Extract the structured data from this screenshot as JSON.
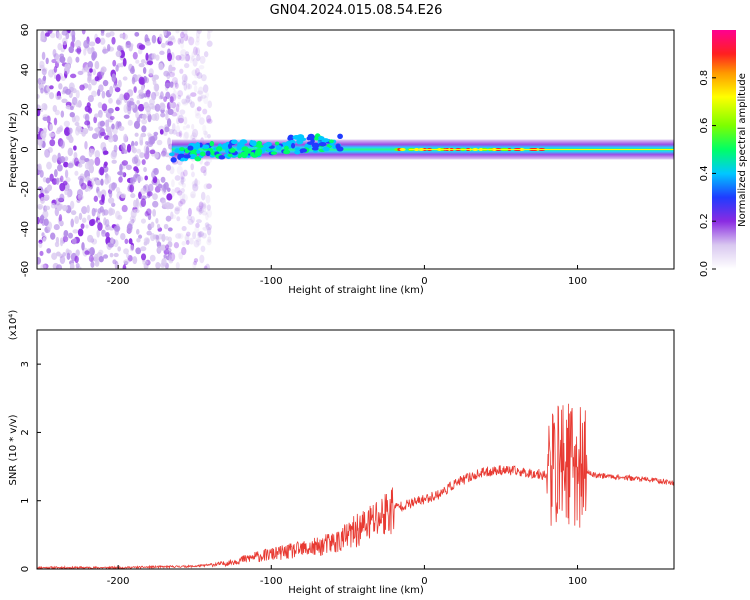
{
  "title": "GN04.2024.015.08.54.E26",
  "chart_data": [
    {
      "type": "heatmap",
      "xlabel": "Height of straight line (km)",
      "ylabel": "Frequency (Hz)",
      "xlim": [
        -253,
        163
      ],
      "ylim": [
        -60,
        60
      ],
      "xticks": [
        -200,
        -100,
        0,
        100
      ],
      "yticks": [
        -60,
        -40,
        -20,
        0,
        20,
        40,
        60
      ],
      "colorbar": {
        "label": "Normalized spectral amplitude",
        "range": [
          0,
          1
        ],
        "ticks": [
          "0.0",
          "0.2",
          "0.4",
          "0.6",
          "0.8"
        ],
        "colors": [
          "#ffffff",
          "#d9c8f0",
          "#8a2be2",
          "#1f3cff",
          "#00c8ff",
          "#00ff66",
          "#7dff00",
          "#ffff00",
          "#ff9900",
          "#ff2020",
          "#ff0090"
        ]
      },
      "features": {
        "noise_region_x": [
          -253,
          -140
        ],
        "main_line_x": [
          -165,
          163
        ],
        "main_line_freq": 0,
        "peak_x": [
          -20,
          80
        ]
      }
    },
    {
      "type": "line",
      "xlabel": "Height of straight line (km)",
      "ylabel": "SNR (10 * v/v)",
      "y_multiplier": "(x10⁴)",
      "xlim": [
        -253,
        163
      ],
      "ylim": [
        0,
        3.5
      ],
      "xticks": [
        -200,
        -100,
        0,
        100
      ],
      "yticks": [
        0,
        1,
        2,
        3
      ],
      "series": [
        {
          "color": "#e83a32",
          "x": [
            -253,
            -200,
            -150,
            -130,
            -110,
            -90,
            -70,
            -55,
            -45,
            -35,
            -25,
            -20,
            -10,
            0,
            10,
            20,
            30,
            40,
            50,
            60,
            70,
            80,
            85,
            90,
            95,
            100,
            104,
            110,
            120,
            130,
            140,
            150,
            163
          ],
          "y": [
            0.02,
            0.02,
            0.04,
            0.08,
            0.18,
            0.25,
            0.32,
            0.42,
            0.55,
            0.68,
            0.82,
            0.9,
            0.95,
            1.02,
            1.1,
            1.25,
            1.35,
            1.42,
            1.45,
            1.43,
            1.4,
            1.38,
            1.5,
            1.6,
            1.55,
            1.5,
            1.45,
            1.38,
            1.36,
            1.34,
            1.32,
            1.3,
            1.26
          ]
        }
      ]
    }
  ]
}
